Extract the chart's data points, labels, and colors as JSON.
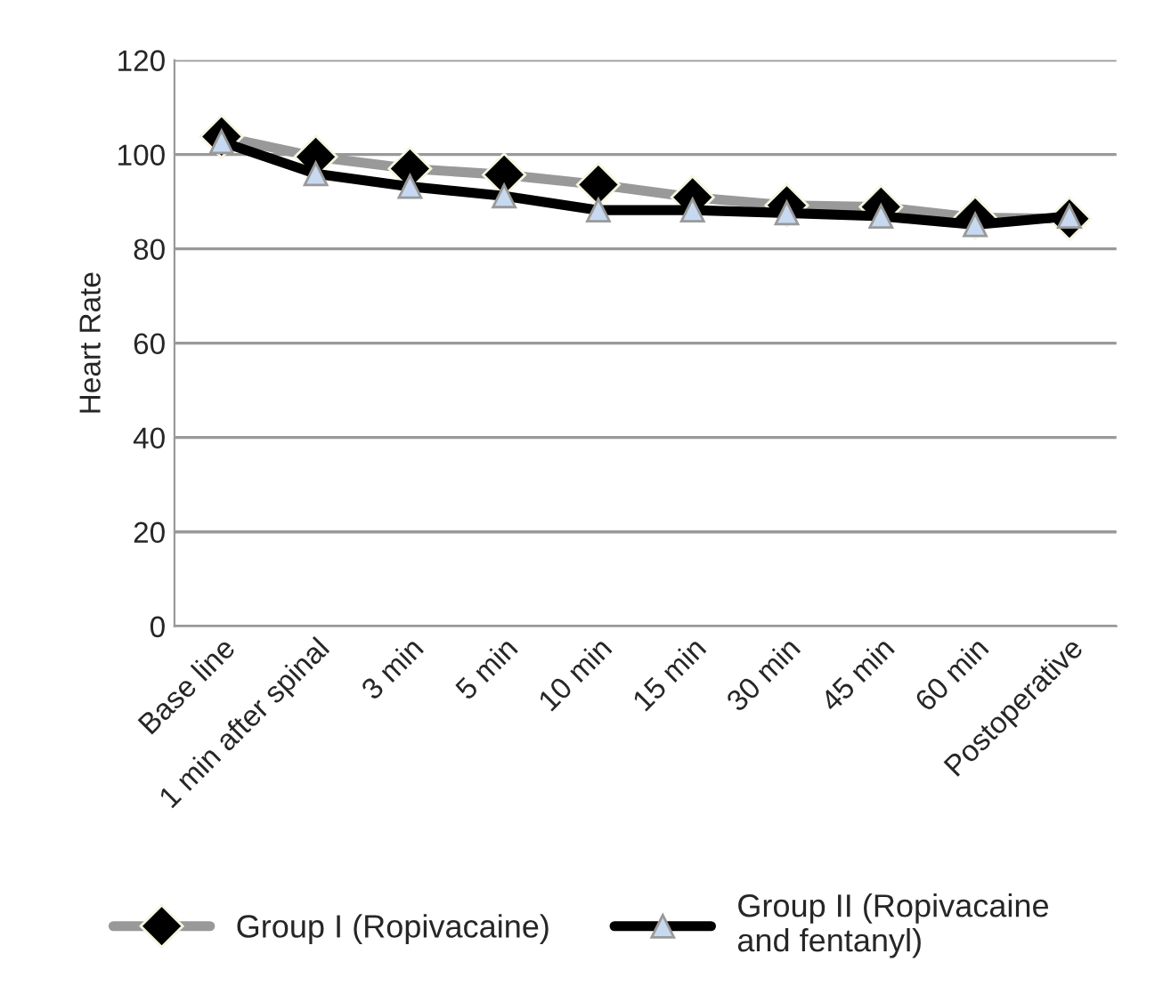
{
  "chart_data": {
    "type": "line",
    "ylabel": "Heart Rate",
    "categories": [
      "Base line",
      "1 min after spinal",
      "3 min",
      "5 min",
      "10 min",
      "15 min",
      "30 min",
      "45 min",
      "60 min",
      "Postoperative"
    ],
    "series": [
      {
        "name": "Group I (Ropivacaine)",
        "color": "#999999",
        "marker": "diamond",
        "values": [
          103.8,
          99.5,
          97,
          95.7,
          93.6,
          90.9,
          89.2,
          88.9,
          86.6,
          86.4
        ]
      },
      {
        "name": "Group II (Ropivacaine and fentanyl)",
        "color": "#000000",
        "marker": "triangle",
        "values": [
          102.7,
          95.9,
          93.2,
          91.2,
          88.2,
          88.2,
          87.6,
          86.9,
          85.1,
          86.9
        ]
      }
    ],
    "ylim": [
      0,
      120
    ],
    "yticks": [
      0,
      20,
      40,
      60,
      80,
      100,
      120
    ],
    "grid": "y",
    "legend": "bottom"
  }
}
